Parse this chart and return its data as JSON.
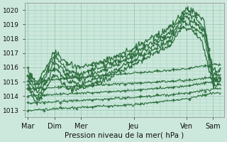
{
  "title": "",
  "xlabel": "Pression niveau de la mer( hPa )",
  "ylabel": "",
  "bg_color": "#cce8dc",
  "grid_color": "#a0ccb8",
  "line_color": "#2d6e3e",
  "marker_color": "#2d6e3e",
  "ylim": [
    1012.5,
    1020.5
  ],
  "yticks": [
    1013,
    1014,
    1015,
    1016,
    1017,
    1018,
    1019,
    1020
  ],
  "day_labels": [
    "Mar",
    "Dim",
    "Mer",
    "Jeu",
    "Ven",
    "Sam"
  ],
  "day_positions": [
    0,
    24,
    48,
    96,
    144,
    168
  ],
  "xlim": [
    -3,
    178
  ]
}
